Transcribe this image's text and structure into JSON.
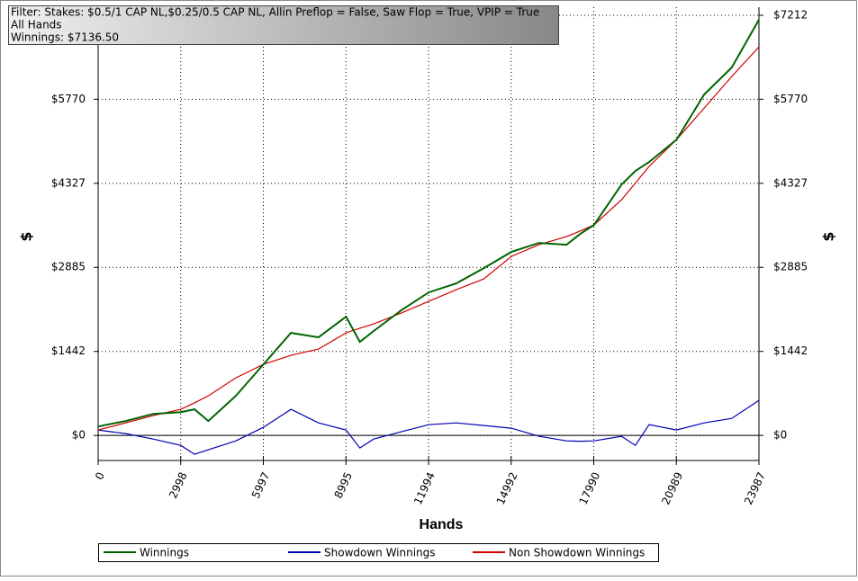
{
  "chart_data": {
    "type": "line",
    "annotations": [
      "Filter: Stakes: $0.5/1 CAP NL,$0.25/0.5 CAP NL, Allin Preflop = False, Saw Flop = True, VPIP = True",
      "All Hands",
      "Winnings: $7136.50"
    ],
    "x_label": "Hands",
    "y_label": "$",
    "x": [
      0,
      1000,
      2000,
      3000,
      3500,
      4000,
      5000,
      6000,
      7000,
      8000,
      9000,
      9500,
      10000,
      11000,
      12000,
      13000,
      14000,
      15000,
      16000,
      17000,
      17500,
      18000,
      19000,
      19500,
      20000,
      21000,
      22000,
      23000,
      23987
    ],
    "series": [
      {
        "name": "Winnings",
        "color": "#006400",
        "values": [
          154,
          247,
          370,
          400,
          448,
          247,
          680,
          1220,
          1760,
          1683,
          2038,
          1606,
          1791,
          2146,
          2455,
          2609,
          2872,
          3150,
          3304,
          3273,
          3459,
          3613,
          4308,
          4539,
          4694,
          5080,
          5852,
          6315,
          7136
        ]
      },
      {
        "name": "Showdown Winnings",
        "color": "#0000b0",
        "values": [
          93,
          31,
          -62,
          -170,
          -324,
          -247,
          -93,
          139,
          448,
          216,
          93,
          -216,
          -62,
          62,
          185,
          216,
          170,
          124,
          -15,
          -93,
          -100,
          -93,
          -15,
          -170,
          185,
          93,
          216,
          293,
          602
        ]
      },
      {
        "name": "Non Showdown Winnings",
        "color": "#d00000",
        "values": [
          93,
          216,
          340,
          448,
          560,
          680,
          988,
          1220,
          1374,
          1482,
          1760,
          1840,
          1914,
          2100,
          2300,
          2501,
          2687,
          3073,
          3273,
          3412,
          3510,
          3613,
          4045,
          4330,
          4617,
          5080,
          5620,
          6161,
          6670
        ]
      }
    ],
    "xlim": [
      0,
      23987
    ],
    "xticks": [
      0,
      2998,
      5997,
      8995,
      11994,
      14992,
      17990,
      20989,
      23987
    ],
    "ylim": [
      -430,
      7350
    ],
    "yticks": [
      {
        "value": 0,
        "label": "$0"
      },
      {
        "value": 1442,
        "label": "$1442"
      },
      {
        "value": 2885,
        "label": "$2885"
      },
      {
        "value": 4327,
        "label": "$4327"
      },
      {
        "value": 5770,
        "label": "$5770"
      },
      {
        "value": 7212,
        "label": "$7212"
      }
    ],
    "grid": true
  }
}
